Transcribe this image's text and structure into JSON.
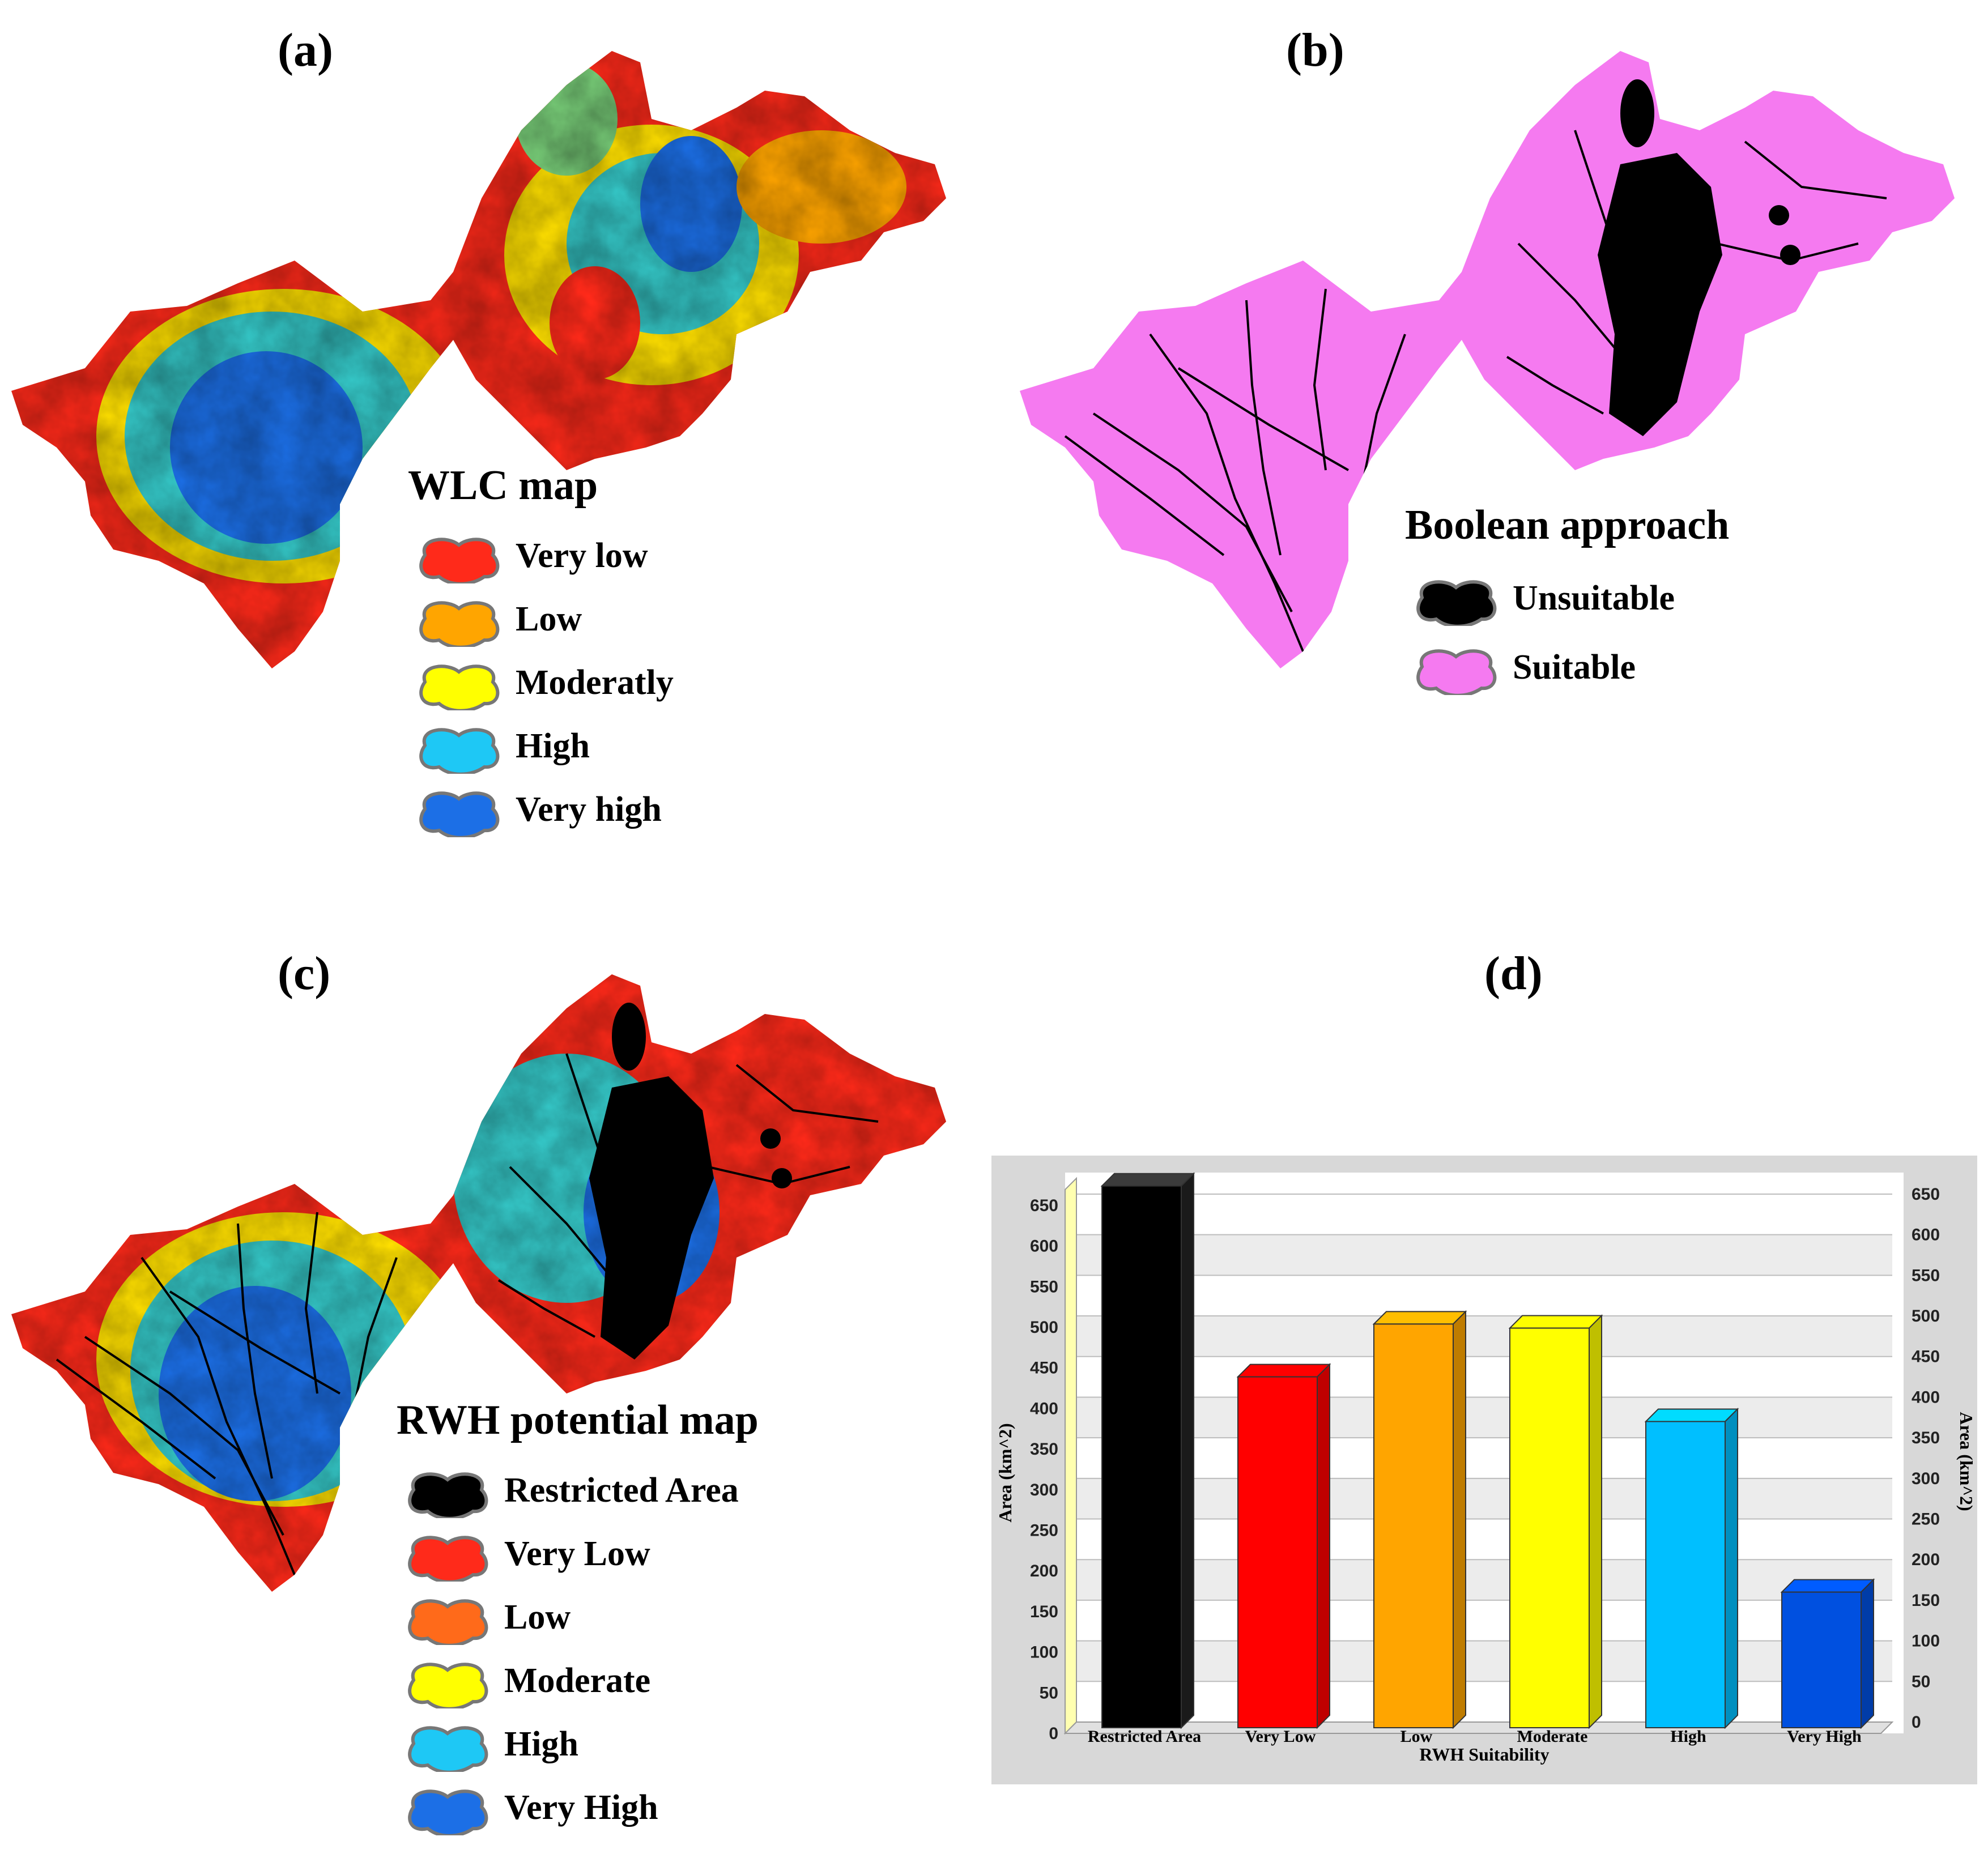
{
  "panels": {
    "a": {
      "label": "(a)",
      "legend_title": "WLC map",
      "legend": [
        {
          "label": "Very low",
          "color": "#ff2a1a"
        },
        {
          "label": "Low",
          "color": "#ffa500"
        },
        {
          "label": "Moderatly",
          "color": "#ffff00"
        },
        {
          "label": "High",
          "color": "#1ec8f5"
        },
        {
          "label": "Very high",
          "color": "#1c6fe6"
        }
      ]
    },
    "b": {
      "label": "(b)",
      "legend_title": "Boolean approach",
      "legend": [
        {
          "label": "Unsuitable",
          "color": "#000000"
        },
        {
          "label": "Suitable",
          "color": "#f57af0"
        }
      ]
    },
    "c": {
      "label": "(c)",
      "legend_title": "RWH potential map",
      "legend": [
        {
          "label": "Restricted Area",
          "color": "#000000"
        },
        {
          "label": "Very Low",
          "color": "#ff2a1a"
        },
        {
          "label": "Low",
          "color": "#ff6a1a"
        },
        {
          "label": "Moderate",
          "color": "#ffff00"
        },
        {
          "label": "High",
          "color": "#1ec8f5"
        },
        {
          "label": "Very High",
          "color": "#1c6fe6"
        }
      ]
    },
    "d": {
      "label": "(d)"
    }
  },
  "chart_data": {
    "type": "bar",
    "categories": [
      "Restricted Area",
      "Very Low",
      "Low",
      "Moderate",
      "High",
      "Very High"
    ],
    "values": [
      660,
      425,
      490,
      485,
      370,
      160
    ],
    "colors": [
      "#000000",
      "#ff0000",
      "#ffa500",
      "#ffff00",
      "#00bfff",
      "#0050e0"
    ],
    "ylabel": "Area (km^2)",
    "ylabel_right": "Area (km^2)",
    "xlabel": "RWH Suitability",
    "ylim": [
      0,
      650
    ],
    "yticks": [
      0,
      50,
      100,
      150,
      200,
      250,
      300,
      350,
      400,
      450,
      500,
      550,
      600,
      650
    ],
    "grid": true,
    "style": "3d-bar"
  }
}
